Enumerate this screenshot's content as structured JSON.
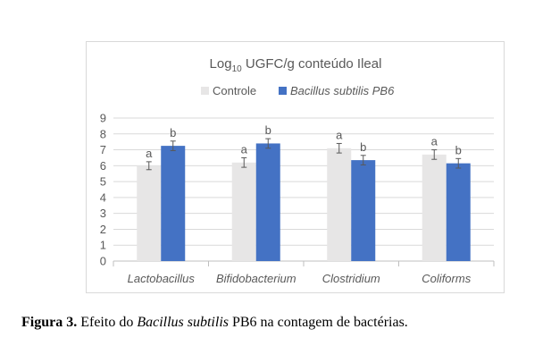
{
  "chart_data": {
    "type": "bar",
    "title_main": "Log",
    "title_sub": "10",
    "title_rest": " UGFC/g conteúdo Ileal",
    "categories": [
      "Lactobacillus",
      "Bifidobacterium",
      "Clostridium",
      "Coliforms"
    ],
    "series": [
      {
        "name": "Controle",
        "color": "#e7e6e6",
        "italic": false,
        "values": [
          6.0,
          6.2,
          7.1,
          6.7
        ],
        "errors": [
          0.25,
          0.3,
          0.3,
          0.3
        ],
        "labels": [
          "a",
          "a",
          "a",
          "a"
        ]
      },
      {
        "name": "Bacillus subtilis PB6",
        "color": "#4472c4",
        "italic": true,
        "values": [
          7.25,
          7.4,
          6.35,
          6.15
        ],
        "errors": [
          0.3,
          0.3,
          0.3,
          0.3
        ],
        "labels": [
          "b",
          "b",
          "b",
          "b"
        ]
      }
    ],
    "yticks": [
      "0",
      "1",
      "2",
      "3",
      "4",
      "5",
      "6",
      "7",
      "8",
      "9"
    ],
    "ylim": [
      0,
      9
    ],
    "grid": true,
    "legend_position": "top"
  },
  "caption": {
    "label": "Figura 3.",
    "text_before": " Efeito do ",
    "italic_text": "Bacillus subtilis",
    "text_after": " PB6 na contagem de bactérias."
  }
}
